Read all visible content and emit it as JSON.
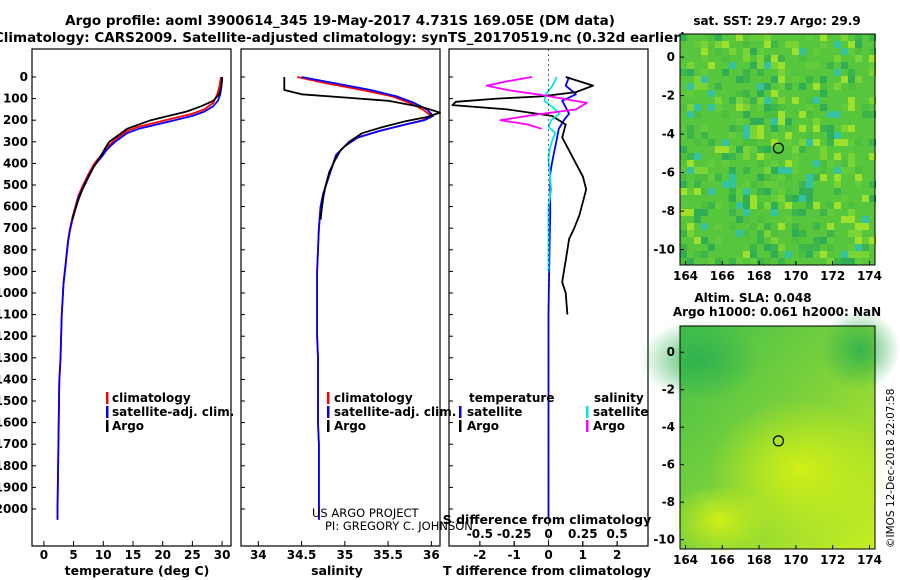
{
  "header": {
    "line1": "Argo profile: aoml 3900614_345 19-May-2017 4.731S 169.05E (DM data)",
    "line2": "Climatology: CARS2009. Satellite-adjusted climatology: synTS_20170519.nc (0.32d earlier)"
  },
  "colors": {
    "climatology": "#ff0000",
    "satellite": "#0000ff",
    "argo": "#000000",
    "salinity_satellite": "#00e5ee",
    "salinity_argo": "#ff00ff"
  },
  "depth_ticks": [
    "0",
    "100",
    "200",
    "300",
    "400",
    "500",
    "600",
    "700",
    "800",
    "900",
    "1000",
    "1100",
    "1200",
    "1300",
    "1400",
    "1500",
    "1600",
    "1700",
    "1800",
    "1900",
    "2000"
  ],
  "panels": {
    "temperature": {
      "xlabel": "temperature (deg C)",
      "xticks": [
        "0",
        "5",
        "10",
        "15",
        "20",
        "25",
        "30"
      ],
      "legend": [
        "climatology",
        "satellite-adj. clim.",
        "Argo"
      ]
    },
    "salinity": {
      "xlabel": "salinity",
      "xticks": [
        "34",
        "34.5",
        "35",
        "35.5",
        "36"
      ],
      "legend": [
        "climatology",
        "satellite-adj. clim.",
        "Argo"
      ],
      "credit1": "US ARGO PROJECT",
      "credit2": "PI: GREGORY C. JOHNSON"
    },
    "difference": {
      "xlabel": "T difference from climatology",
      "toplabel": "S difference from climatology",
      "xticks": [
        "-2",
        "-1",
        "0",
        "1",
        "2"
      ],
      "sticks": [
        "-0.5",
        "-0.25",
        "0",
        "0.25",
        "0.5"
      ],
      "legend_t_title": "temperature",
      "legend_s_title": "salinity",
      "legend_t": [
        "satellite",
        "Argo"
      ],
      "legend_s": [
        "satellite",
        "Argo"
      ]
    }
  },
  "maps": {
    "sst_title": "sat. SST: 29.7 Argo: 29.9",
    "sla_title1": "Altim. SLA: 0.048",
    "sla_title2": "Argo h1000: 0.061 h2000: NaN",
    "xticks": [
      "164",
      "166",
      "168",
      "170",
      "172",
      "174"
    ],
    "yticks": [
      "0",
      "-2",
      "-4",
      "-6",
      "-8",
      "-10"
    ],
    "float_lon": 169.05,
    "float_lat": -4.731
  },
  "stamp": "©IMOS 12-Dec-2018 22:07:58",
  "chart_data": [
    {
      "type": "line",
      "title": "",
      "xlabel": "temperature (deg C)",
      "ylabel": "",
      "xlim": [
        -2,
        31.5
      ],
      "ylim": [
        2080,
        0
      ],
      "series": [
        {
          "name": "climatology",
          "color": "#ff0000",
          "x": [
            29.8,
            29.6,
            29.2,
            28.5,
            27,
            25,
            22,
            19,
            16,
            14,
            13,
            12,
            11.2,
            10.5,
            10,
            8.5,
            7.5,
            6.6,
            5.8,
            5.3,
            4.8,
            4.4,
            4.1,
            3.9,
            3.7,
            3.5,
            3.3,
            3.2,
            3.1,
            3.0,
            2.95,
            2.9,
            2.85,
            2.8,
            2.7,
            2.6,
            2.55,
            2.5,
            2.45,
            2.4,
            2.35,
            2.3,
            2.3,
            2.3
          ],
          "y": [
            0,
            40,
            80,
            120,
            150,
            170,
            190,
            210,
            230,
            250,
            270,
            290,
            310,
            330,
            350,
            400,
            450,
            500,
            550,
            600,
            650,
            700,
            750,
            800,
            850,
            900,
            950,
            1000,
            1050,
            1100,
            1150,
            1200,
            1250,
            1300,
            1350,
            1400,
            1500,
            1600,
            1700,
            1800,
            1900,
            2000,
            2030,
            2050
          ]
        },
        {
          "name": "satellite-adj. clim.",
          "color": "#0000ff",
          "x": [
            30,
            29.9,
            29.7,
            29.3,
            28.5,
            27,
            25,
            22,
            19,
            16,
            14,
            13,
            12,
            11.2,
            10.5,
            10,
            8.5,
            7.5,
            6.6,
            5.8,
            5.3,
            4.8,
            4.4,
            4.1,
            3.9,
            3.7,
            3.5,
            3.3,
            3.2,
            3.1,
            3.0,
            2.95,
            2.9,
            2.85,
            2.8,
            2.7,
            2.6,
            2.55,
            2.5,
            2.45,
            2.4,
            2.35,
            2.3,
            2.3
          ],
          "y": [
            0,
            40,
            80,
            110,
            135,
            160,
            180,
            200,
            220,
            240,
            260,
            280,
            300,
            320,
            340,
            360,
            410,
            460,
            510,
            560,
            610,
            660,
            710,
            760,
            810,
            860,
            910,
            960,
            1010,
            1060,
            1110,
            1160,
            1210,
            1260,
            1310,
            1360,
            1410,
            1510,
            1610,
            1710,
            1810,
            1910,
            2010,
            2050
          ]
        },
        {
          "name": "Argo",
          "color": "#000000",
          "x": [
            30,
            29.9,
            29.5,
            28.5,
            26.5,
            24,
            21,
            18,
            16,
            14,
            13,
            12,
            11,
            10.3,
            9.5,
            8.3,
            7.4,
            6.5,
            5.8,
            5.2,
            4.8
          ],
          "y": [
            0,
            40,
            80,
            110,
            135,
            160,
            180,
            200,
            220,
            240,
            260,
            280,
            300,
            330,
            370,
            420,
            470,
            520,
            570,
            620,
            660
          ]
        }
      ]
    },
    {
      "type": "line",
      "title": "",
      "xlabel": "salinity",
      "ylabel": "",
      "xlim": [
        33.8,
        36.1
      ],
      "ylim": [
        2080,
        0
      ],
      "series": [
        {
          "name": "climatology",
          "color": "#ff0000",
          "x": [
            34.45,
            34.8,
            35.2,
            35.55,
            35.75,
            35.9,
            36.0,
            35.9,
            35.7,
            35.4,
            35.15,
            35.0,
            34.9,
            34.85,
            34.8,
            34.75,
            34.72,
            34.7,
            34.69,
            34.68,
            34.68,
            34.68,
            34.68,
            34.69,
            34.69,
            34.69,
            34.69,
            34.7,
            34.7,
            34.7,
            34.7,
            34.7
          ],
          "y": [
            0,
            30,
            60,
            90,
            120,
            150,
            180,
            200,
            220,
            250,
            280,
            320,
            360,
            420,
            480,
            540,
            600,
            700,
            800,
            900,
            1000,
            1100,
            1200,
            1300,
            1400,
            1500,
            1600,
            1700,
            1800,
            1900,
            2000,
            2050
          ]
        },
        {
          "name": "satellite-adj. clim.",
          "color": "#0000ff",
          "x": [
            34.5,
            34.9,
            35.3,
            35.6,
            35.8,
            35.95,
            36.02,
            35.92,
            35.7,
            35.4,
            35.15,
            35.0,
            34.9,
            34.85,
            34.8,
            34.75,
            34.72,
            34.7,
            34.69,
            34.68,
            34.68,
            34.68,
            34.68,
            34.69,
            34.69,
            34.69,
            34.69,
            34.7,
            34.7,
            34.7,
            34.7,
            34.7
          ],
          "y": [
            0,
            30,
            60,
            90,
            120,
            150,
            180,
            200,
            220,
            250,
            280,
            320,
            360,
            420,
            480,
            540,
            600,
            700,
            800,
            900,
            1000,
            1100,
            1200,
            1300,
            1400,
            1500,
            1600,
            1700,
            1800,
            1900,
            2000,
            2050
          ]
        },
        {
          "name": "Argo",
          "color": "#000000",
          "x": [
            34.3,
            34.3,
            34.5,
            35.0,
            35.5,
            35.9,
            36.1,
            35.95,
            35.7,
            35.45,
            35.2,
            35.05,
            34.95,
            34.88,
            34.82,
            34.78,
            34.75,
            34.73,
            34.72
          ],
          "y": [
            0,
            60,
            80,
            95,
            110,
            140,
            165,
            185,
            205,
            230,
            260,
            300,
            340,
            390,
            440,
            500,
            560,
            620,
            660
          ]
        }
      ]
    },
    {
      "type": "line",
      "title": "",
      "xlabel": "T difference from climatology",
      "ylabel": "",
      "xlim": [
        -2.9,
        2.9
      ],
      "ylim": [
        2080,
        0
      ],
      "series": [
        {
          "name": "temperature satellite",
          "color": "#0000ff",
          "x": [
            0.6,
            0.5,
            0.8,
            0.4,
            0.5,
            0.6,
            0.45,
            0.3,
            0.25,
            0.2,
            0.15,
            0.1,
            0.05,
            0.05,
            0.05,
            0.05,
            0.05,
            0.04,
            0.03,
            0.02,
            0.01,
            0,
            0,
            0,
            0,
            0,
            0,
            0,
            0,
            0,
            0,
            0,
            0
          ],
          "y": [
            0,
            40,
            80,
            110,
            140,
            170,
            200,
            240,
            280,
            320,
            360,
            400,
            450,
            500,
            550,
            600,
            650,
            700,
            800,
            900,
            1000,
            1100,
            1200,
            1300,
            1400,
            1500,
            1600,
            1700,
            1800,
            1900,
            2000,
            2020,
            2040
          ]
        },
        {
          "name": "temperature Argo",
          "color": "#000000",
          "x": [
            0.5,
            1.3,
            0.8,
            -0.2,
            -1.5,
            -2.7,
            -2.8,
            -1.2,
            0.1,
            0.5,
            0.4,
            0.6,
            0.8,
            1.0,
            1.1,
            1.0,
            0.9,
            0.75,
            0.6,
            0.55,
            0.5,
            0.45,
            0.4,
            0.5,
            0.55
          ],
          "y": [
            0,
            40,
            70,
            90,
            100,
            115,
            130,
            150,
            180,
            220,
            280,
            340,
            400,
            460,
            520,
            580,
            640,
            700,
            750,
            800,
            850,
            900,
            950,
            1000,
            1100
          ]
        },
        {
          "name": "salinity satellite",
          "color": "#00e5ee",
          "x": [
            0.06,
            0.03,
            -0.02,
            -0.03,
            0.03,
            0.08,
            0.02,
            0.0,
            0.05,
            0.03,
            0.01,
            0.0,
            0.01,
            0.02,
            0.0,
            0.0,
            0.0,
            0.0,
            0.0
          ],
          "y": [
            0,
            40,
            80,
            110,
            140,
            170,
            200,
            230,
            260,
            290,
            330,
            380,
            450,
            520,
            600,
            700,
            750,
            800,
            900
          ]
        },
        {
          "name": "salinity Argo",
          "color": "#ff00ff",
          "x": [
            -0.12,
            -0.3,
            -0.45,
            -0.3,
            -0.08,
            0.28,
            0.2,
            -0.1,
            -0.35,
            -0.15,
            -0.05
          ],
          "y": [
            0,
            20,
            40,
            60,
            80,
            120,
            150,
            175,
            200,
            220,
            240
          ]
        }
      ]
    }
  ]
}
